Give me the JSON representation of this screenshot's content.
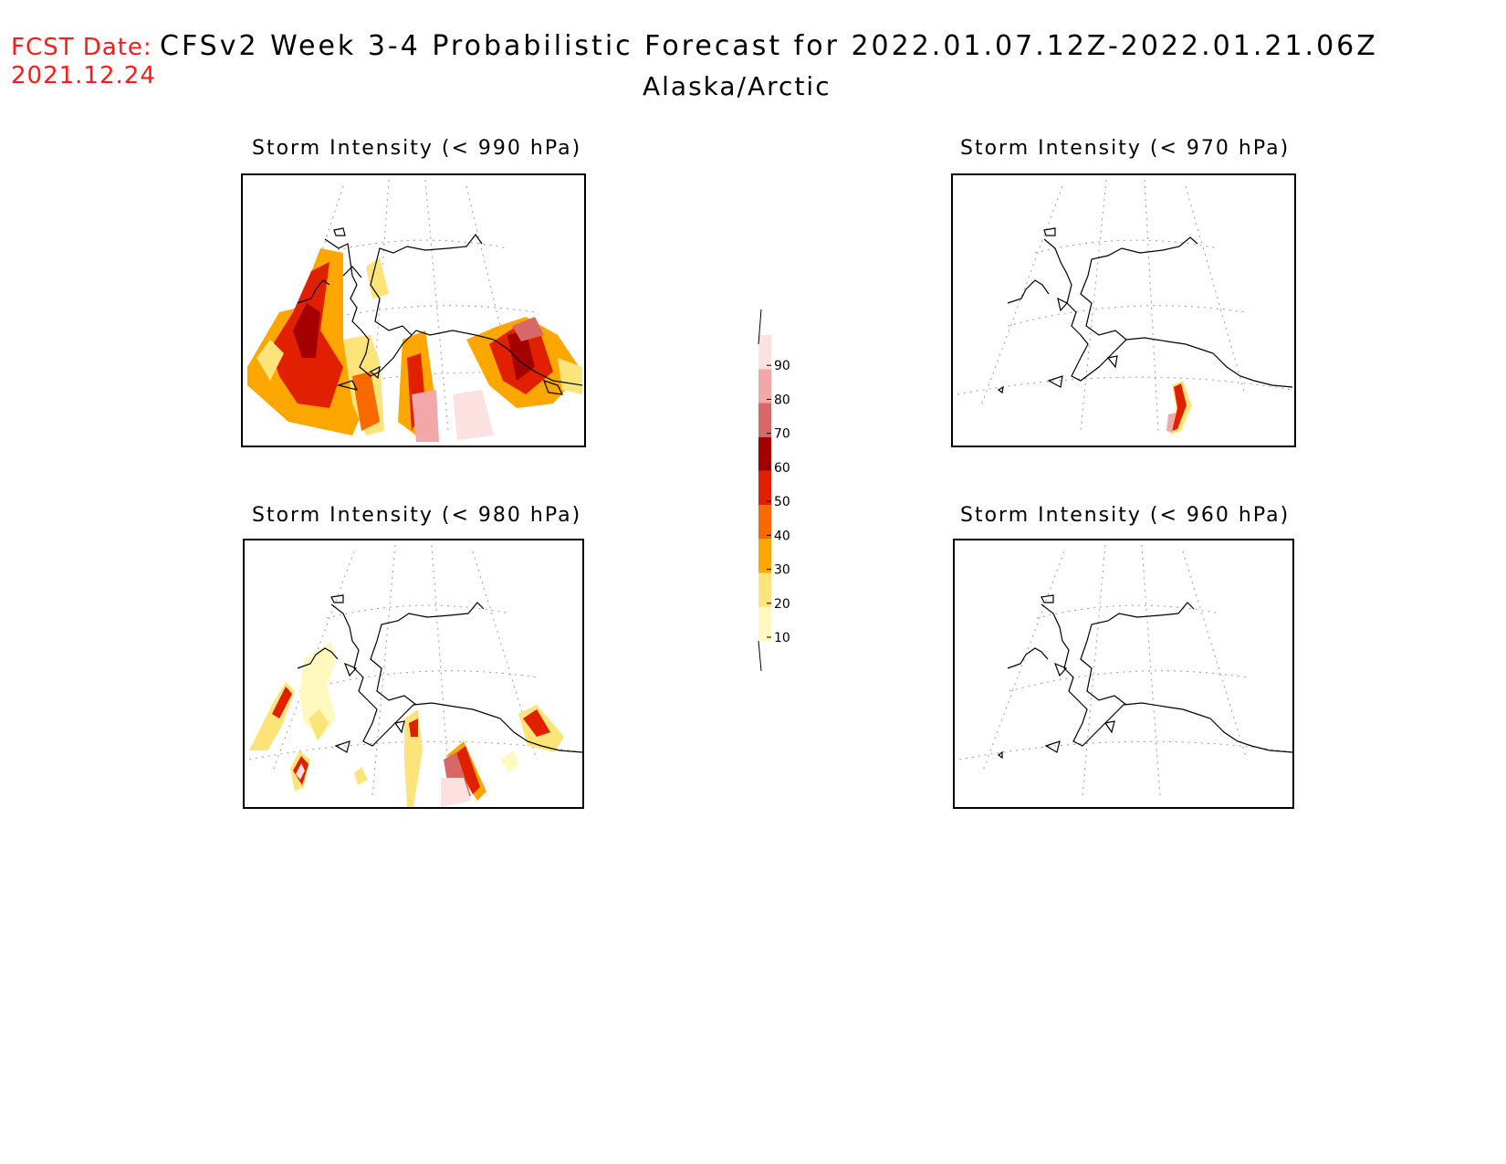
{
  "header": {
    "fcst_label": "FCST Date:",
    "fcst_date": "2021.12.24",
    "title": "CFSv2 Week 3-4 Probabilistic Forecast for 2022.01.07.12Z-2022.01.21.06Z",
    "subtitle": "Alaska/Arctic"
  },
  "panels": [
    {
      "title": "Storm Intensity (< 990 hPa)",
      "coverage": "extensive"
    },
    {
      "title": "Storm Intensity (< 970 hPa)",
      "coverage": "single-small-area"
    },
    {
      "title": "Storm Intensity (< 980 hPa)",
      "coverage": "scattered"
    },
    {
      "title": "Storm Intensity (< 960 hPa)",
      "coverage": "none"
    }
  ],
  "colorbar": {
    "levels": [
      "10",
      "20",
      "30",
      "40",
      "50",
      "60",
      "70",
      "80",
      "90"
    ],
    "colors": [
      "#fff9c0",
      "#fde47a",
      "#fca600",
      "#f86a00",
      "#e02000",
      "#a40000",
      "#d86868",
      "#f2a8a8",
      "#fde0e0"
    ]
  }
}
